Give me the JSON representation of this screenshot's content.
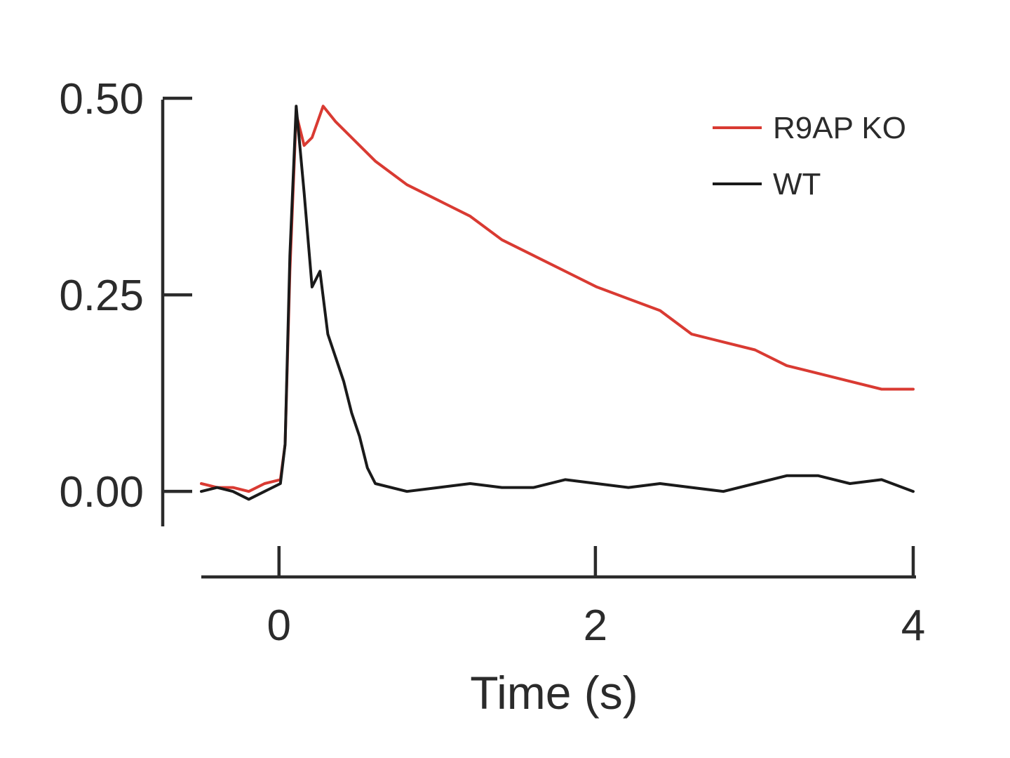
{
  "chart_data": {
    "type": "line",
    "title": "",
    "xlabel": "Time (s)",
    "ylabel": "",
    "xlim": [
      -0.5,
      4.0
    ],
    "ylim": [
      -0.04,
      0.5
    ],
    "x_ticks": [
      0,
      2,
      4
    ],
    "x_tick_labels": [
      "0",
      "2",
      "4"
    ],
    "y_ticks": [
      0.0,
      0.25,
      0.5
    ],
    "y_tick_labels": [
      "0.00",
      "0.25",
      "0.50"
    ],
    "grid": false,
    "legend_position": "top-right",
    "series": [
      {
        "name": "R9AP KO",
        "color": "#d93a32",
        "points": [
          [
            -0.5,
            0.01
          ],
          [
            -0.4,
            0.005
          ],
          [
            -0.3,
            0.005
          ],
          [
            -0.2,
            0.0
          ],
          [
            -0.1,
            0.01
          ],
          [
            0.0,
            0.015
          ],
          [
            0.03,
            0.06
          ],
          [
            0.06,
            0.28
          ],
          [
            0.1,
            0.48
          ],
          [
            0.15,
            0.44
          ],
          [
            0.2,
            0.45
          ],
          [
            0.27,
            0.49
          ],
          [
            0.35,
            0.47
          ],
          [
            0.45,
            0.45
          ],
          [
            0.6,
            0.42
          ],
          [
            0.8,
            0.39
          ],
          [
            1.0,
            0.37
          ],
          [
            1.2,
            0.35
          ],
          [
            1.4,
            0.32
          ],
          [
            1.6,
            0.3
          ],
          [
            1.8,
            0.28
          ],
          [
            2.0,
            0.26
          ],
          [
            2.2,
            0.245
          ],
          [
            2.4,
            0.23
          ],
          [
            2.6,
            0.2
          ],
          [
            2.8,
            0.19
          ],
          [
            3.0,
            0.18
          ],
          [
            3.2,
            0.16
          ],
          [
            3.4,
            0.15
          ],
          [
            3.6,
            0.14
          ],
          [
            3.8,
            0.13
          ],
          [
            4.0,
            0.13
          ]
        ]
      },
      {
        "name": "WT",
        "color": "#1a1a1a",
        "points": [
          [
            -0.5,
            0.0
          ],
          [
            -0.4,
            0.005
          ],
          [
            -0.3,
            0.0
          ],
          [
            -0.2,
            -0.01
          ],
          [
            -0.1,
            0.0
          ],
          [
            0.0,
            0.01
          ],
          [
            0.03,
            0.06
          ],
          [
            0.06,
            0.3
          ],
          [
            0.1,
            0.49
          ],
          [
            0.15,
            0.38
          ],
          [
            0.2,
            0.26
          ],
          [
            0.25,
            0.28
          ],
          [
            0.3,
            0.2
          ],
          [
            0.35,
            0.17
          ],
          [
            0.4,
            0.14
          ],
          [
            0.45,
            0.1
          ],
          [
            0.5,
            0.07
          ],
          [
            0.55,
            0.03
          ],
          [
            0.6,
            0.01
          ],
          [
            0.8,
            0.0
          ],
          [
            1.0,
            0.005
          ],
          [
            1.2,
            0.01
          ],
          [
            1.4,
            0.005
          ],
          [
            1.6,
            0.005
          ],
          [
            1.8,
            0.015
          ],
          [
            2.0,
            0.01
          ],
          [
            2.2,
            0.005
          ],
          [
            2.4,
            0.01
          ],
          [
            2.6,
            0.005
          ],
          [
            2.8,
            0.0
          ],
          [
            3.0,
            0.01
          ],
          [
            3.2,
            0.02
          ],
          [
            3.4,
            0.02
          ],
          [
            3.6,
            0.01
          ],
          [
            3.8,
            0.015
          ],
          [
            4.0,
            0.0
          ]
        ]
      }
    ]
  }
}
